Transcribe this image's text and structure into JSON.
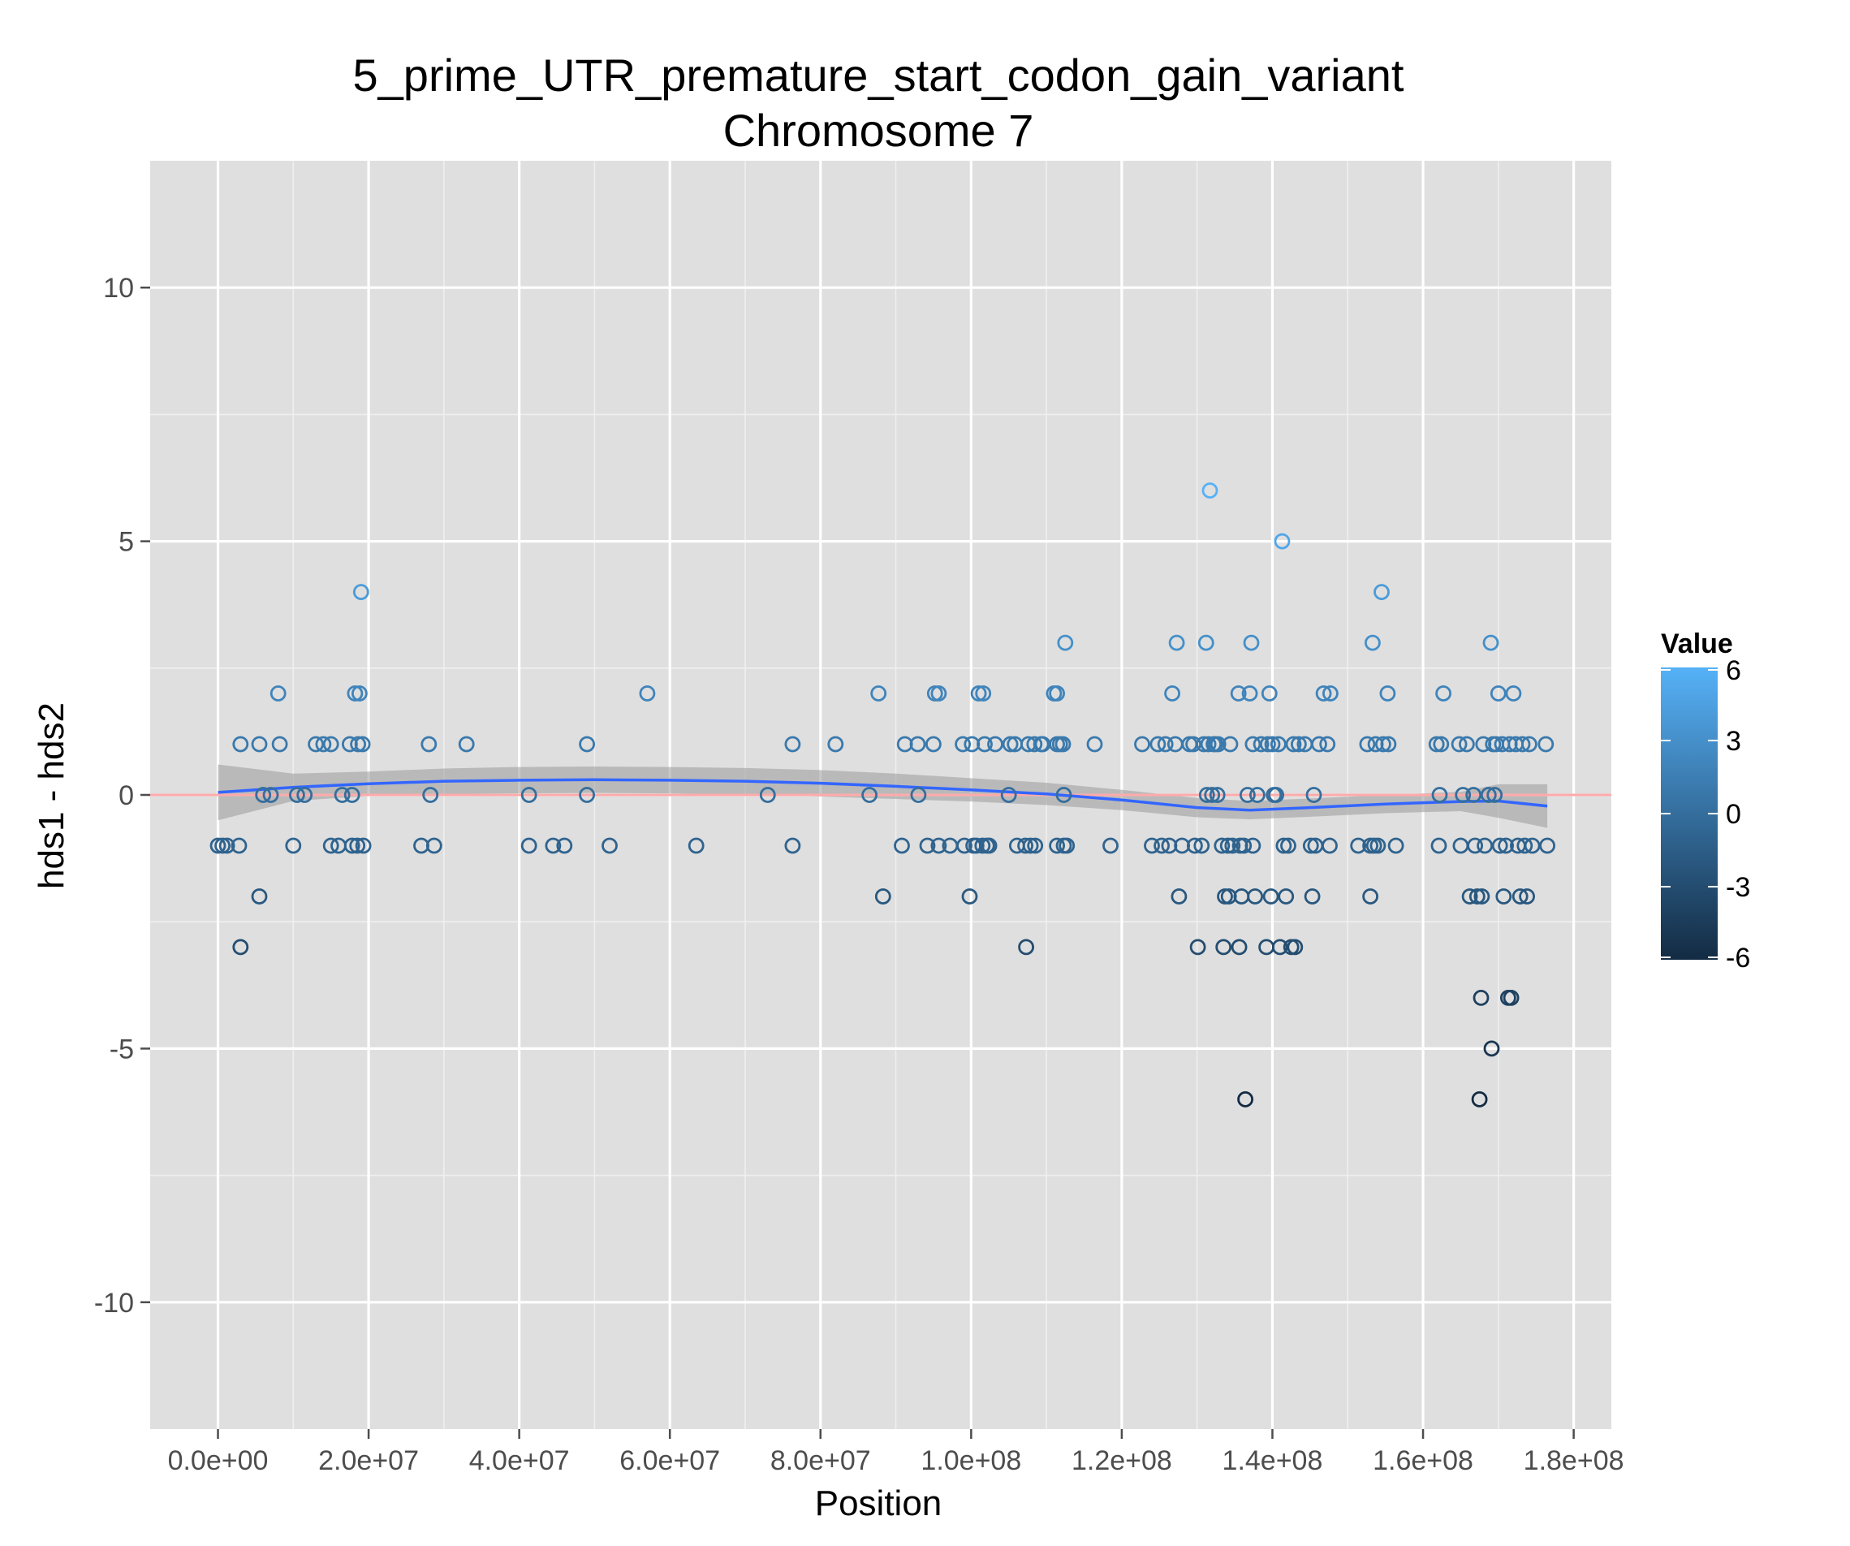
{
  "chart_data": {
    "type": "scatter",
    "title": "5_prime_UTR_premature_start_codon_gain_variant",
    "subtitle": "Chromosome 7",
    "xlabel": "Position",
    "ylabel": "hds1 - hds2",
    "xlim": [
      -9000000,
      185000000
    ],
    "ylim": [
      -12.5,
      12.5
    ],
    "x_ticks": [
      0,
      20000000,
      40000000,
      60000000,
      80000000,
      100000000,
      120000000,
      140000000,
      160000000,
      180000000
    ],
    "x_tick_labels": [
      "0.0e+00",
      "2.0e+07",
      "4.0e+07",
      "6.0e+07",
      "8.0e+07",
      "1.0e+08",
      "1.2e+08",
      "1.4e+08",
      "1.6e+08",
      "1.8e+08"
    ],
    "y_ticks": [
      -10,
      -5,
      0,
      5,
      10
    ],
    "y_tick_labels": [
      "-10",
      "-5",
      "0",
      "5",
      "10"
    ],
    "grid": true,
    "reference_line": {
      "y": 0,
      "color": "#ffaaaa"
    },
    "legend": {
      "title": "Value",
      "position": "right",
      "type": "gradient",
      "low_color": "#132b43",
      "high_color": "#56b1f7",
      "range": [
        -6,
        6
      ],
      "ticks": [
        6,
        3,
        0,
        -3,
        -6
      ],
      "tick_labels": [
        "6",
        "3",
        "0",
        "-3",
        "-6"
      ]
    },
    "smooth": {
      "color": "#3366ff",
      "band_color": "#999999",
      "x": [
        0,
        10000000,
        20000000,
        30000000,
        40000000,
        50000000,
        60000000,
        70000000,
        80000000,
        90000000,
        100000000,
        110000000,
        120000000,
        130000000,
        137000000,
        145000000,
        155000000,
        165000000,
        170000000,
        176500000
      ],
      "y": [
        0.05,
        0.15,
        0.22,
        0.27,
        0.29,
        0.3,
        0.29,
        0.27,
        0.23,
        0.17,
        0.1,
        0.02,
        -0.1,
        -0.25,
        -0.3,
        -0.25,
        -0.18,
        -0.13,
        -0.12,
        -0.22
      ],
      "lower": [
        -0.5,
        -0.12,
        -0.02,
        0.02,
        0.03,
        0.04,
        0.03,
        0.01,
        -0.03,
        -0.08,
        -0.13,
        -0.2,
        -0.3,
        -0.44,
        -0.48,
        -0.43,
        -0.36,
        -0.32,
        -0.45,
        -0.65
      ],
      "upper": [
        0.6,
        0.42,
        0.46,
        0.52,
        0.55,
        0.56,
        0.55,
        0.53,
        0.49,
        0.42,
        0.33,
        0.24,
        0.1,
        -0.06,
        -0.12,
        -0.07,
        0.0,
        0.06,
        0.21,
        0.21
      ]
    },
    "points": [
      [
        0,
        -1
      ],
      [
        600000,
        -1
      ],
      [
        1200000,
        -1
      ],
      [
        2800000,
        -1
      ],
      [
        3000000,
        1
      ],
      [
        3000000,
        -3
      ],
      [
        5500000,
        1
      ],
      [
        5500000,
        -2
      ],
      [
        6000000,
        0
      ],
      [
        7000000,
        0
      ],
      [
        8000000,
        2
      ],
      [
        8200000,
        1
      ],
      [
        10000000,
        -1
      ],
      [
        10500000,
        0
      ],
      [
        11500000,
        0
      ],
      [
        13000000,
        1
      ],
      [
        14000000,
        1
      ],
      [
        15000000,
        1
      ],
      [
        15000000,
        -1
      ],
      [
        16000000,
        -1
      ],
      [
        16500000,
        0
      ],
      [
        17500000,
        1
      ],
      [
        17800000,
        -1
      ],
      [
        17800000,
        0
      ],
      [
        18200000,
        2
      ],
      [
        18500000,
        -1
      ],
      [
        18600000,
        1
      ],
      [
        18800000,
        2
      ],
      [
        19000000,
        4
      ],
      [
        19200000,
        1
      ],
      [
        19300000,
        -1
      ],
      [
        27000000,
        -1
      ],
      [
        28000000,
        1
      ],
      [
        28200000,
        0
      ],
      [
        28700000,
        -1
      ],
      [
        33000000,
        1
      ],
      [
        41300000,
        0
      ],
      [
        41300000,
        -1
      ],
      [
        44500000,
        -1
      ],
      [
        46000000,
        -1
      ],
      [
        49000000,
        1
      ],
      [
        49000000,
        0
      ],
      [
        52000000,
        -1
      ],
      [
        57000000,
        2
      ],
      [
        63500000,
        -1
      ],
      [
        73000000,
        0
      ],
      [
        76300000,
        1
      ],
      [
        76300000,
        -1
      ],
      [
        82000000,
        1
      ],
      [
        86500000,
        0
      ],
      [
        87700000,
        2
      ],
      [
        88300000,
        -2
      ],
      [
        90800000,
        -1
      ],
      [
        91200000,
        1
      ],
      [
        92900000,
        1
      ],
      [
        93000000,
        0
      ],
      [
        94200000,
        -1
      ],
      [
        95000000,
        1
      ],
      [
        95200000,
        2
      ],
      [
        95700000,
        2
      ],
      [
        95700000,
        -1
      ],
      [
        97200000,
        -1
      ],
      [
        98900000,
        1
      ],
      [
        99100000,
        -1
      ],
      [
        99800000,
        -2
      ],
      [
        100100000,
        1
      ],
      [
        100300000,
        -1
      ],
      [
        100700000,
        -1
      ],
      [
        101000000,
        2
      ],
      [
        101500000,
        -1
      ],
      [
        101600000,
        2
      ],
      [
        101800000,
        1
      ],
      [
        102100000,
        -1
      ],
      [
        102400000,
        -1
      ],
      [
        103200000,
        1
      ],
      [
        105000000,
        0
      ],
      [
        105200000,
        1
      ],
      [
        105800000,
        1
      ],
      [
        106100000,
        -1
      ],
      [
        107200000,
        -1
      ],
      [
        107300000,
        -3
      ],
      [
        107600000,
        1
      ],
      [
        107900000,
        -1
      ],
      [
        108400000,
        1
      ],
      [
        108500000,
        -1
      ],
      [
        109300000,
        1
      ],
      [
        109500000,
        1
      ],
      [
        111000000,
        2
      ],
      [
        111400000,
        2
      ],
      [
        111400000,
        1
      ],
      [
        111400000,
        -1
      ],
      [
        111800000,
        1
      ],
      [
        112200000,
        1
      ],
      [
        112300000,
        0
      ],
      [
        112300000,
        -1
      ],
      [
        112500000,
        3
      ],
      [
        112700000,
        -1
      ],
      [
        116400000,
        1
      ],
      [
        118500000,
        -1
      ],
      [
        122700000,
        1
      ],
      [
        124000000,
        -1
      ],
      [
        124800000,
        1
      ],
      [
        125300000,
        -1
      ],
      [
        125800000,
        1
      ],
      [
        126300000,
        -1
      ],
      [
        126700000,
        2
      ],
      [
        127100000,
        1
      ],
      [
        127300000,
        3
      ],
      [
        127600000,
        -2
      ],
      [
        128000000,
        -1
      ],
      [
        129000000,
        1
      ],
      [
        129500000,
        1
      ],
      [
        129700000,
        -1
      ],
      [
        130100000,
        -3
      ],
      [
        130600000,
        -1
      ],
      [
        130900000,
        1
      ],
      [
        131200000,
        3
      ],
      [
        131300000,
        0
      ],
      [
        131500000,
        1
      ],
      [
        131700000,
        6
      ],
      [
        132000000,
        0
      ],
      [
        132200000,
        1
      ],
      [
        132400000,
        1
      ],
      [
        132700000,
        0
      ],
      [
        132800000,
        1
      ],
      [
        133300000,
        -1
      ],
      [
        133500000,
        -3
      ],
      [
        133700000,
        -2
      ],
      [
        134100000,
        -1
      ],
      [
        134200000,
        -2
      ],
      [
        134400000,
        1
      ],
      [
        134700000,
        -1
      ],
      [
        135500000,
        2
      ],
      [
        135600000,
        -3
      ],
      [
        135700000,
        -1
      ],
      [
        135900000,
        -2
      ],
      [
        136200000,
        -1
      ],
      [
        136400000,
        -6
      ],
      [
        136700000,
        0
      ],
      [
        137000000,
        2
      ],
      [
        137200000,
        3
      ],
      [
        137400000,
        1
      ],
      [
        137400000,
        -1
      ],
      [
        137700000,
        -2
      ],
      [
        138000000,
        0
      ],
      [
        138500000,
        1
      ],
      [
        139200000,
        -3
      ],
      [
        139400000,
        1
      ],
      [
        139600000,
        2
      ],
      [
        139800000,
        -2
      ],
      [
        140000000,
        1
      ],
      [
        140200000,
        0
      ],
      [
        140500000,
        0
      ],
      [
        140800000,
        1
      ],
      [
        141000000,
        -3
      ],
      [
        141300000,
        5
      ],
      [
        141500000,
        -1
      ],
      [
        141800000,
        -2
      ],
      [
        142100000,
        -1
      ],
      [
        142500000,
        -3
      ],
      [
        142800000,
        1
      ],
      [
        143000000,
        -3
      ],
      [
        143500000,
        1
      ],
      [
        144300000,
        1
      ],
      [
        145100000,
        -1
      ],
      [
        145300000,
        -2
      ],
      [
        145500000,
        0
      ],
      [
        145700000,
        -1
      ],
      [
        146200000,
        1
      ],
      [
        146800000,
        2
      ],
      [
        147300000,
        1
      ],
      [
        147600000,
        -1
      ],
      [
        147700000,
        2
      ],
      [
        151400000,
        -1
      ],
      [
        152600000,
        1
      ],
      [
        153000000,
        -1
      ],
      [
        153000000,
        -2
      ],
      [
        153300000,
        3
      ],
      [
        153500000,
        -1
      ],
      [
        153700000,
        1
      ],
      [
        154000000,
        -1
      ],
      [
        154500000,
        4
      ],
      [
        154700000,
        1
      ],
      [
        155300000,
        2
      ],
      [
        155400000,
        1
      ],
      [
        156400000,
        -1
      ],
      [
        161800000,
        1
      ],
      [
        162100000,
        -1
      ],
      [
        162200000,
        0
      ],
      [
        162400000,
        1
      ],
      [
        162700000,
        2
      ],
      [
        164800000,
        1
      ],
      [
        165000000,
        -1
      ],
      [
        165300000,
        0
      ],
      [
        165800000,
        1
      ],
      [
        166200000,
        -2
      ],
      [
        166700000,
        0
      ],
      [
        166900000,
        -1
      ],
      [
        167200000,
        -2
      ],
      [
        167500000,
        -6
      ],
      [
        167700000,
        -4
      ],
      [
        167800000,
        -2
      ],
      [
        168000000,
        1
      ],
      [
        168200000,
        -1
      ],
      [
        168700000,
        0
      ],
      [
        169000000,
        3
      ],
      [
        169100000,
        -5
      ],
      [
        169300000,
        1
      ],
      [
        169500000,
        0
      ],
      [
        169700000,
        1
      ],
      [
        170000000,
        2
      ],
      [
        170200000,
        -1
      ],
      [
        170500000,
        1
      ],
      [
        170700000,
        -2
      ],
      [
        171000000,
        -1
      ],
      [
        171300000,
        -4
      ],
      [
        171500000,
        1
      ],
      [
        171700000,
        -4
      ],
      [
        172000000,
        2
      ],
      [
        172300000,
        1
      ],
      [
        172600000,
        -1
      ],
      [
        172900000,
        -2
      ],
      [
        173200000,
        1
      ],
      [
        173500000,
        -1
      ],
      [
        173800000,
        -2
      ],
      [
        174100000,
        1
      ],
      [
        174500000,
        -1
      ],
      [
        176300000,
        1
      ],
      [
        176500000,
        -1
      ]
    ]
  }
}
